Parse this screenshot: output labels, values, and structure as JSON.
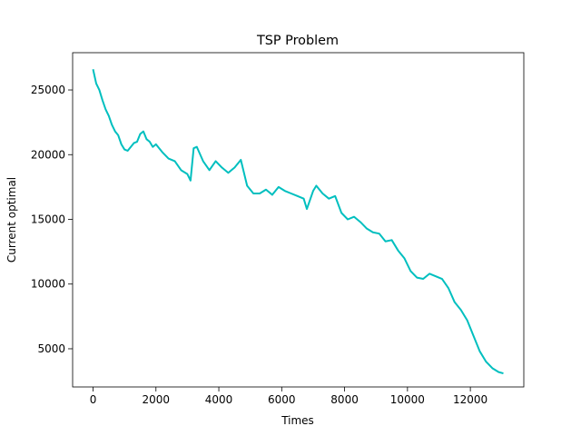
{
  "chart_data": {
    "type": "line",
    "title": "TSP Problem",
    "x_label": "Times",
    "y_label": "Current optimal",
    "x": [
      0,
      100,
      200,
      300,
      400,
      500,
      600,
      700,
      800,
      900,
      1000,
      1100,
      1200,
      1300,
      1400,
      1500,
      1600,
      1700,
      1800,
      1900,
      2000,
      2200,
      2400,
      2600,
      2800,
      3000,
      3100,
      3200,
      3300,
      3500,
      3700,
      3900,
      4100,
      4300,
      4500,
      4700,
      4900,
      5100,
      5300,
      5500,
      5700,
      5900,
      6100,
      6300,
      6500,
      6700,
      6800,
      7000,
      7100,
      7300,
      7500,
      7700,
      7900,
      8100,
      8300,
      8500,
      8700,
      8900,
      9100,
      9300,
      9500,
      9700,
      9900,
      10100,
      10300,
      10500,
      10700,
      10900,
      11100,
      11300,
      11500,
      11700,
      11900,
      12100,
      12300,
      12500,
      12700,
      12900,
      13050
    ],
    "series": [
      {
        "name": "Current optimal",
        "color": "#00bfbf",
        "values": [
          26600,
          25500,
          25000,
          24200,
          23500,
          23000,
          22300,
          21800,
          21500,
          20800,
          20400,
          20300,
          20600,
          20900,
          21000,
          21600,
          21800,
          21200,
          21000,
          20600,
          20800,
          20200,
          19700,
          19500,
          18800,
          18500,
          18000,
          20500,
          20600,
          19500,
          18800,
          19500,
          19000,
          18600,
          19000,
          19600,
          17600,
          17000,
          17000,
          17300,
          16900,
          17500,
          17200,
          17000,
          16800,
          16600,
          15800,
          17200,
          17600,
          17000,
          16600,
          16800,
          15500,
          15000,
          15200,
          14800,
          14300,
          14000,
          13900,
          13300,
          13400,
          12600,
          12000,
          11000,
          10500,
          10400,
          10800,
          10600,
          10400,
          9700,
          8600,
          8000,
          7200,
          6000,
          4800,
          4000,
          3500,
          3200,
          3100
        ]
      }
    ],
    "xlim": [
      -650,
      13700
    ],
    "ylim": [
      2050,
      27880
    ],
    "xticks": [
      0,
      2000,
      4000,
      6000,
      8000,
      10000,
      12000
    ],
    "yticks": [
      5000,
      10000,
      15000,
      20000,
      25000
    ]
  }
}
